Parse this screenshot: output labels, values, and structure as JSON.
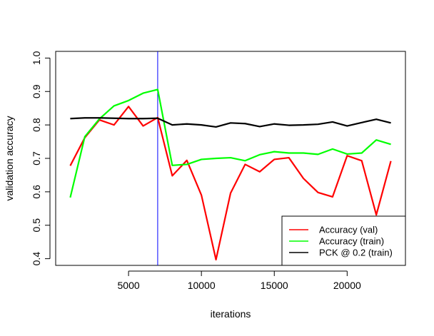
{
  "chart_data": {
    "type": "line",
    "title": "",
    "xlabel": "iterations",
    "ylabel": "validation accuracy",
    "xlim": [
      0,
      24000
    ],
    "ylim": [
      0.38,
      1.02
    ],
    "xticks": [
      5000,
      10000,
      15000,
      20000
    ],
    "yticks": [
      0.4,
      0.5,
      0.6,
      0.7,
      0.8,
      0.9,
      1.0
    ],
    "xtick_labels": [
      "5000",
      "10000",
      "15000",
      "20000"
    ],
    "ytick_labels": [
      "0.4",
      "0.5",
      "0.6",
      "0.7",
      "0.8",
      "0.9",
      "1.0"
    ],
    "grid": false,
    "legend_position": "bottom-right",
    "vline": {
      "x": 7000,
      "color": "#0000ff"
    },
    "x": [
      1000,
      2000,
      3000,
      4000,
      5000,
      6000,
      7000,
      8000,
      9000,
      10000,
      11000,
      12000,
      13000,
      14000,
      15000,
      16000,
      17000,
      18000,
      19000,
      20000,
      21000,
      22000,
      23000
    ],
    "series": [
      {
        "name": "Accuracy (val)",
        "color": "#ff0000",
        "values": [
          0.678,
          0.762,
          0.815,
          0.8,
          0.855,
          0.797,
          0.822,
          0.648,
          0.694,
          0.59,
          0.397,
          0.596,
          0.682,
          0.66,
          0.697,
          0.702,
          0.64,
          0.598,
          0.585,
          0.708,
          0.693,
          0.531,
          0.692
        ]
      },
      {
        "name": "Accuracy (train)",
        "color": "#00ff00",
        "values": [
          0.583,
          0.765,
          0.818,
          0.857,
          0.873,
          0.895,
          0.906,
          0.679,
          0.682,
          0.697,
          0.7,
          0.702,
          0.693,
          0.711,
          0.72,
          0.716,
          0.716,
          0.712,
          0.728,
          0.713,
          0.716,
          0.755,
          0.742
        ]
      },
      {
        "name": "PCK @ 0.2 (train)",
        "color": "#000000",
        "values": [
          0.819,
          0.821,
          0.821,
          0.82,
          0.819,
          0.819,
          0.82,
          0.8,
          0.803,
          0.8,
          0.794,
          0.806,
          0.804,
          0.795,
          0.803,
          0.799,
          0.8,
          0.802,
          0.809,
          0.797,
          0.807,
          0.817,
          0.806
        ]
      }
    ]
  }
}
